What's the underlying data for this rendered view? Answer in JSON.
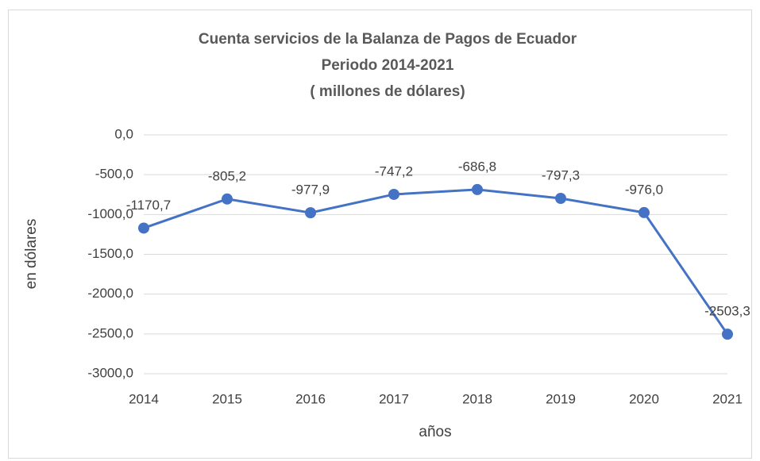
{
  "chart_data": {
    "type": "line",
    "title": [
      "Cuenta servicios de la Balanza de Pagos de Ecuador",
      "Periodo 2014-2021",
      "( millones de dólares)"
    ],
    "x_label": "años",
    "y_label": "en dólares",
    "categories": [
      "2014",
      "2015",
      "2016",
      "2017",
      "2018",
      "2019",
      "2020",
      "2021"
    ],
    "series": [
      {
        "name": "Cuenta servicios",
        "color": "#4472c4",
        "values": [
          -1170.7,
          -805.2,
          -977.9,
          -747.2,
          -686.8,
          -797.3,
          -976.0,
          -2503.3
        ],
        "value_labels": [
          "-1170,7",
          "-805,2",
          "-977,9",
          "-747,2",
          "-686,8",
          "-797,3",
          "-976,0",
          "-2503,3"
        ]
      }
    ],
    "ylim": [
      -3000,
      0
    ],
    "yticks": [
      {
        "value": 0,
        "label": "0,0"
      },
      {
        "value": -500,
        "label": "-500,0"
      },
      {
        "value": -1000,
        "label": "-1000,0"
      },
      {
        "value": -1500,
        "label": "-1500,0"
      },
      {
        "value": -2000,
        "label": "-2000,0"
      },
      {
        "value": -2500,
        "label": "-2500,0"
      },
      {
        "value": -3000,
        "label": "-3000,0"
      }
    ],
    "grid": true
  }
}
